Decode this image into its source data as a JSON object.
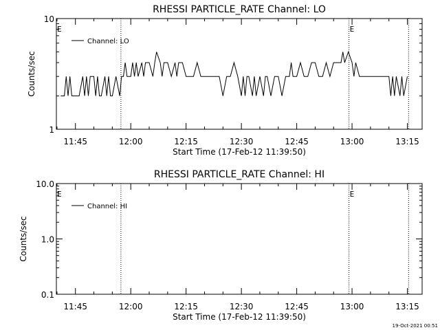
{
  "chart_data": [
    {
      "type": "line",
      "title": "RHESSI PARTICLE_RATE Channel: LO",
      "xlabel": "Start Time (17-Feb-12 11:39:50)",
      "ylabel": "Counts/sec",
      "yscale": "log",
      "ylim": [
        1,
        10
      ],
      "ytick_labels": [
        "1",
        "10"
      ],
      "xlim": [
        "11:39:50",
        "13:19:00"
      ],
      "xtick_labels": [
        "11:45",
        "12:00",
        "12:15",
        "12:30",
        "12:45",
        "13:00",
        "13:15"
      ],
      "legend": {
        "position": "top-left",
        "entries": [
          "Channel: LO"
        ]
      },
      "event_markers": [
        {
          "time": "11:39:50",
          "label": "E"
        },
        {
          "time": "11:57:20",
          "label": ""
        },
        {
          "time": "12:59:10",
          "label": "E"
        },
        {
          "time": "13:15:20",
          "label": ""
        }
      ],
      "series": [
        {
          "name": "Channel: LO",
          "x": [
            "11:41:00",
            "11:42:00",
            "11:42:30",
            "11:43:00",
            "11:43:30",
            "11:44:00",
            "11:45:00",
            "11:46:00",
            "11:47:00",
            "11:47:30",
            "11:48:00",
            "11:48:30",
            "11:49:00",
            "11:50:00",
            "11:50:30",
            "11:51:00",
            "11:51:30",
            "11:52:00",
            "11:53:00",
            "11:53:30",
            "11:54:00",
            "11:54:30",
            "11:55:00",
            "11:56:00",
            "11:57:00",
            "11:57:30",
            "11:58:00",
            "11:58:30",
            "11:59:00",
            "12:00:00",
            "12:00:30",
            "12:01:00",
            "12:01:30",
            "12:02:00",
            "12:03:00",
            "12:03:30",
            "12:04:00",
            "12:05:00",
            "12:06:00",
            "12:06:30",
            "12:07:00",
            "12:08:00",
            "12:08:30",
            "12:09:00",
            "12:10:00",
            "12:11:00",
            "12:12:00",
            "12:12:30",
            "12:13:00",
            "12:14:00",
            "12:15:00",
            "12:16:00",
            "12:17:00",
            "12:18:00",
            "12:19:00",
            "12:20:00",
            "12:21:00",
            "12:22:00",
            "12:23:00",
            "12:24:00",
            "12:25:00",
            "12:26:00",
            "12:27:00",
            "12:28:00",
            "12:29:00",
            "12:30:00",
            "12:30:30",
            "12:31:00",
            "12:31:30",
            "12:32:00",
            "12:33:00",
            "12:33:30",
            "12:34:00",
            "12:35:00",
            "12:36:00",
            "12:36:30",
            "12:37:00",
            "12:38:00",
            "12:39:00",
            "12:40:00",
            "12:41:00",
            "12:42:00",
            "12:43:00",
            "12:43:30",
            "12:44:00",
            "12:45:00",
            "12:46:00",
            "12:47:00",
            "12:48:00",
            "12:49:00",
            "12:50:00",
            "12:51:00",
            "12:52:00",
            "12:53:00",
            "12:54:00",
            "12:55:00",
            "12:56:00",
            "12:57:00",
            "12:57:30",
            "12:58:00",
            "12:59:00",
            "13:00:00",
            "13:00:30",
            "13:01:00",
            "13:02:00",
            "13:03:00",
            "13:05:00",
            "13:08:00",
            "13:10:00",
            "13:10:30",
            "13:11:00",
            "13:11:30",
            "13:12:00",
            "13:13:00",
            "13:13:30",
            "13:14:00",
            "13:15:00"
          ],
          "values": [
            2,
            2,
            3,
            2,
            3,
            2,
            2,
            2,
            3,
            2,
            3,
            2,
            3,
            3,
            2,
            3,
            2,
            2,
            3,
            2,
            3,
            2,
            2,
            3,
            2,
            3,
            3,
            4,
            3,
            3,
            4,
            3,
            4,
            3,
            4,
            3,
            4,
            4,
            3,
            4,
            5,
            4,
            3,
            4,
            4,
            3,
            4,
            3,
            4,
            4,
            3,
            3,
            3,
            4,
            3,
            3,
            3,
            3,
            3,
            3,
            2,
            3,
            3,
            4,
            3,
            2,
            3,
            2,
            3,
            3,
            2,
            3,
            2,
            3,
            2,
            3,
            3,
            2,
            3,
            3,
            2,
            3,
            3,
            4,
            3,
            3,
            4,
            3,
            3,
            4,
            4,
            3,
            3,
            4,
            3,
            4,
            4,
            4,
            5,
            4,
            5,
            4,
            3,
            4,
            3,
            3,
            3,
            3,
            3,
            2,
            3,
            2,
            3,
            2,
            3,
            2,
            3
          ]
        }
      ]
    },
    {
      "type": "line",
      "title": "RHESSI PARTICLE_RATE Channel: HI",
      "xlabel": "Start Time (17-Feb-12 11:39:50)",
      "ylabel": "Counts/sec",
      "yscale": "log",
      "ylim": [
        0.1,
        10
      ],
      "ytick_labels": [
        "0.1",
        "1.0",
        "10.0"
      ],
      "xlim": [
        "11:39:50",
        "13:19:00"
      ],
      "xtick_labels": [
        "11:45",
        "12:00",
        "12:15",
        "12:30",
        "12:45",
        "13:00",
        "13:15"
      ],
      "legend": {
        "position": "top-left",
        "entries": [
          "Channel: HI"
        ]
      },
      "event_markers": [
        {
          "time": "11:39:50",
          "label": "E"
        },
        {
          "time": "11:57:20",
          "label": ""
        },
        {
          "time": "12:59:10",
          "label": "E"
        },
        {
          "time": "13:15:20",
          "label": ""
        }
      ],
      "series": [
        {
          "name": "Channel: HI",
          "x": [],
          "values": []
        }
      ]
    }
  ],
  "footer": {
    "timestamp": "19-Oct-2021 00:51"
  }
}
